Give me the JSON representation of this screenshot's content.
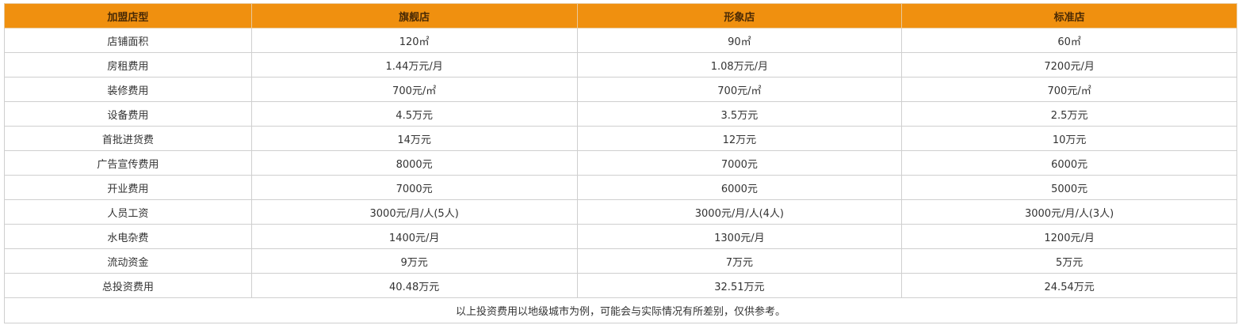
{
  "table": {
    "headers": [
      "加盟店型",
      "旗舰店",
      "形象店",
      "标准店"
    ],
    "rows": [
      [
        "店铺面积",
        "120㎡",
        "90㎡",
        "60㎡"
      ],
      [
        "房租费用",
        "1.44万元/月",
        "1.08万元/月",
        "7200元/月"
      ],
      [
        "装修费用",
        "700元/㎡",
        "700元/㎡",
        "700元/㎡"
      ],
      [
        "设备费用",
        "4.5万元",
        "3.5万元",
        "2.5万元"
      ],
      [
        "首批进货费",
        "14万元",
        "12万元",
        "10万元"
      ],
      [
        "广告宣传费用",
        "8000元",
        "7000元",
        "6000元"
      ],
      [
        "开业费用",
        "7000元",
        "6000元",
        "5000元"
      ],
      [
        "人员工资",
        "3000元/月/人(5人)",
        "3000元/月/人(4人)",
        "3000元/月/人(3人)"
      ],
      [
        "水电杂费",
        "1400元/月",
        "1300元/月",
        "1200元/月"
      ],
      [
        "流动资金",
        "9万元",
        "7万元",
        "5万元"
      ],
      [
        "总投资费用",
        "40.48万元",
        "32.51万元",
        "24.54万元"
      ]
    ],
    "note": "以上投资费用以地级城市为例，可能会与实际情况有所差别，仅供参考。"
  },
  "colors": {
    "header_bg": "#f0900f",
    "border": "#cfcfcf",
    "text": "#333333"
  }
}
